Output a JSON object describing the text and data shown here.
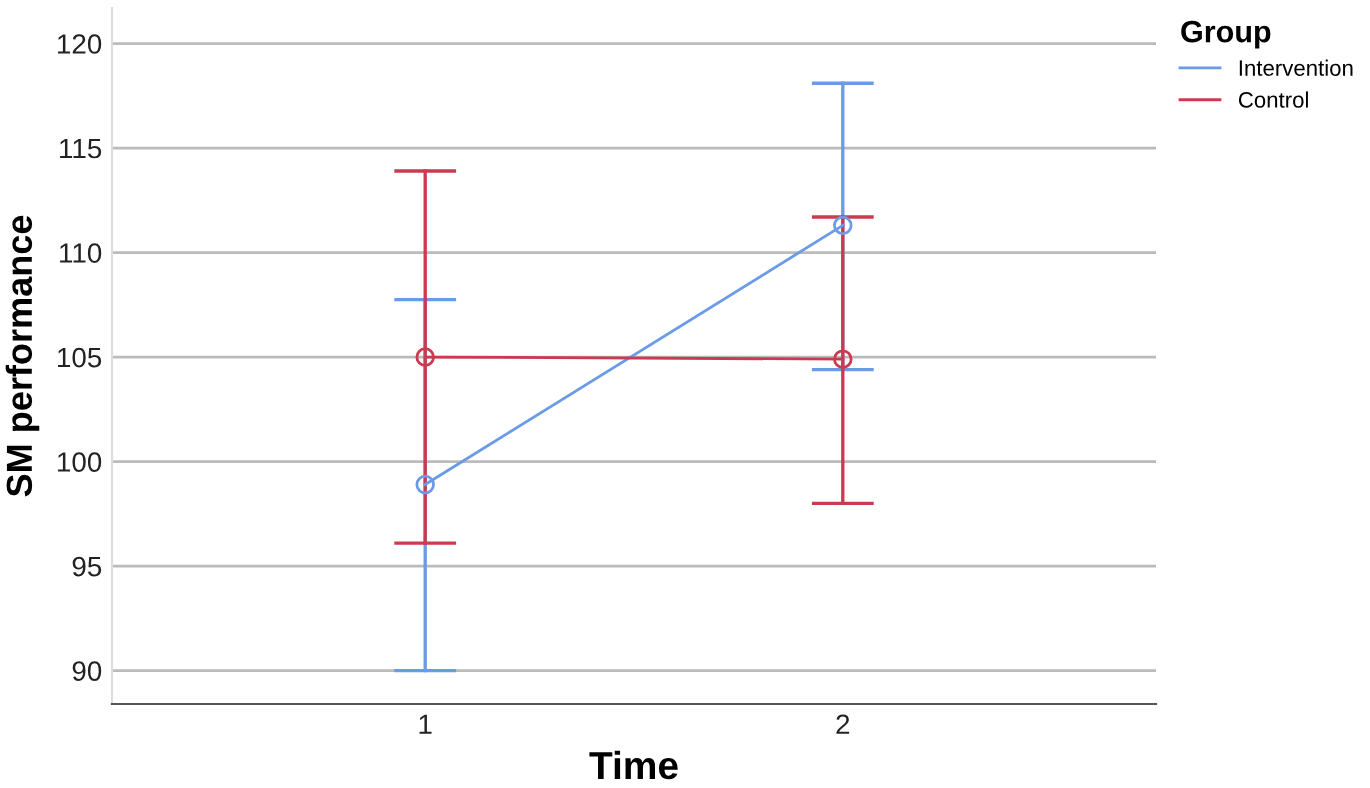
{
  "chart_data": {
    "type": "line",
    "xlabel": "Time",
    "ylabel": "SM performance",
    "legend_title": "Group",
    "categories": [
      "1",
      "2"
    ],
    "series": [
      {
        "name": "Intervention",
        "color": "#6a9be6",
        "values": [
          98.9,
          111.3
        ],
        "errors": [
          [
            90.0,
            107.75
          ],
          [
            104.4,
            118.1
          ]
        ]
      },
      {
        "name": "Control",
        "color": "#cc3a52",
        "values": [
          105.0,
          104.9
        ],
        "errors": [
          [
            96.1,
            113.9
          ],
          [
            98.0,
            111.7
          ]
        ]
      }
    ],
    "ylim": [
      88.4,
      121.7
    ],
    "yticks": [
      90,
      95,
      100,
      105,
      110,
      115,
      120
    ],
    "grid": "y",
    "legend": "top right",
    "marker": "circle",
    "line_style": "solid"
  }
}
